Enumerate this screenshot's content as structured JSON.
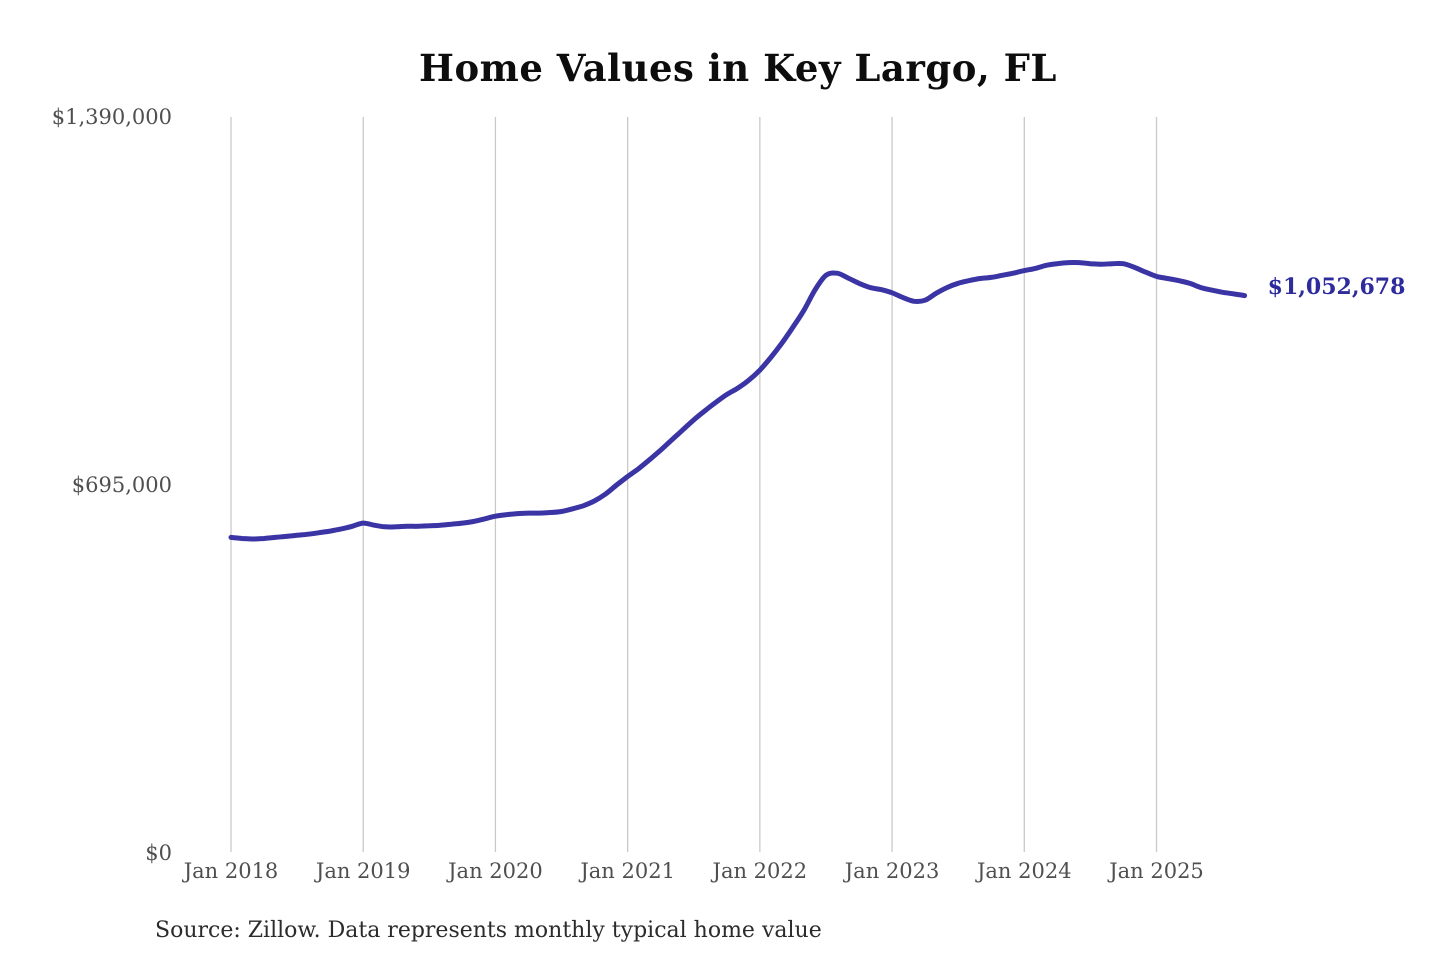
{
  "page": {
    "title": "Home Values in Key Largo, FL",
    "source_note": "Source: Zillow. Data represents monthly typical home value"
  },
  "colors": {
    "background": "#ffffff",
    "line": "#3a34a4",
    "latest_label": "#2e2b9d",
    "gridline": "#c9c9c9",
    "axis_text": "#4f4f4f",
    "title_text": "#0d0d0d",
    "source_text": "#2b2b2b"
  },
  "chart_data": {
    "type": "line",
    "title": "Home Values in Key Largo, FL",
    "xlabel": "",
    "ylabel": "",
    "x_start": "2018-01",
    "x_end": "2025-09",
    "x_interval": "monthly",
    "x_tick_labels": [
      "Jan 2018",
      "Jan 2019",
      "Jan 2020",
      "Jan 2021",
      "Jan 2022",
      "Jan 2023",
      "Jan 2024",
      "Jan 2025"
    ],
    "y_ticks": [
      {
        "label": "$1,390,000",
        "value": 1390000
      },
      {
        "label": "$695,000",
        "value": 695000
      },
      {
        "label": "$0",
        "value": 0
      }
    ],
    "ylim": [
      0,
      1390000
    ],
    "grid": "vertical-only",
    "legend": "none",
    "annotation": {
      "label": "$1,052,678",
      "value": 1052678,
      "position": "end-of-line"
    },
    "series": [
      {
        "name": "Monthly typical home value",
        "values": [
          596000,
          594000,
          593000,
          594000,
          596000,
          598000,
          600000,
          602000,
          605000,
          608000,
          612000,
          617000,
          623000,
          619000,
          616000,
          616000,
          617000,
          617000,
          618000,
          619000,
          621000,
          623000,
          626000,
          631000,
          636000,
          639000,
          641000,
          642000,
          642000,
          643000,
          645000,
          650000,
          656000,
          665000,
          678000,
          695000,
          711000,
          726000,
          743000,
          761000,
          780000,
          799000,
          818000,
          835000,
          851000,
          866000,
          878000,
          893000,
          912000,
          936000,
          963000,
          993000,
          1025000,
          1063000,
          1091000,
          1095000,
          1086000,
          1076000,
          1068000,
          1064000,
          1058000,
          1049000,
          1042000,
          1044000,
          1057000,
          1068000,
          1076000,
          1081000,
          1085000,
          1087000,
          1091000,
          1095000,
          1100000,
          1104000,
          1110000,
          1113000,
          1115000,
          1115000,
          1113000,
          1112000,
          1113000,
          1113000,
          1106000,
          1097000,
          1089000,
          1085000,
          1081000,
          1076000,
          1068000,
          1063000,
          1059000,
          1056000,
          1052678
        ]
      }
    ]
  }
}
